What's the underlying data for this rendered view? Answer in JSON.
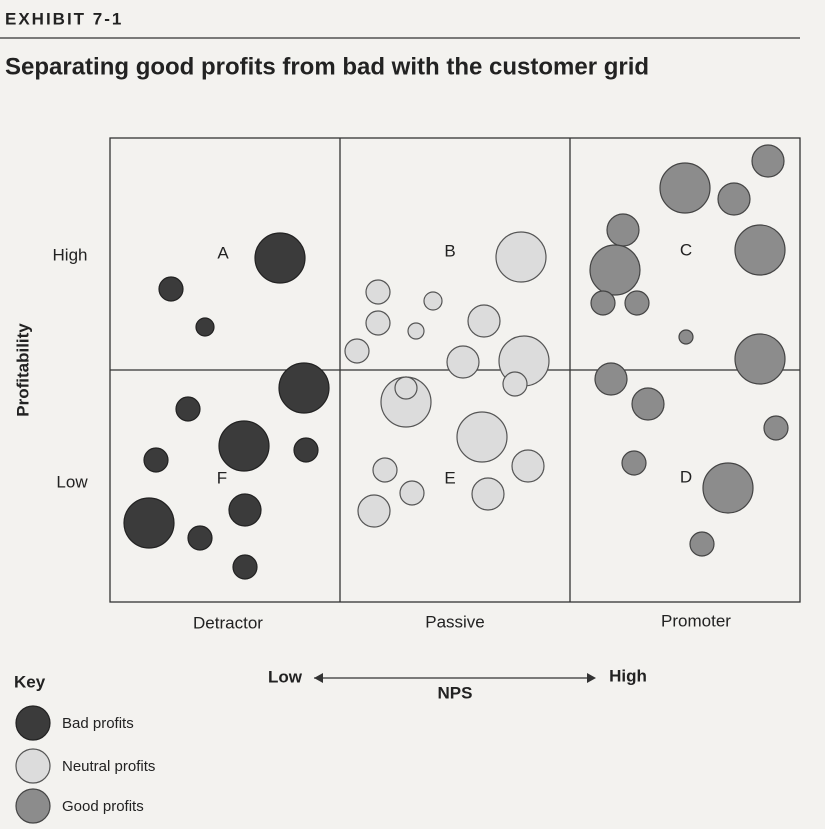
{
  "header": {
    "exhibit": "EXHIBIT 7-1",
    "title": "Separating good profits from bad with the customer grid"
  },
  "grid": {
    "y_axis_title": "Profitability",
    "y_levels": [
      "High",
      "Low"
    ],
    "x_levels": [
      "Detractor",
      "Passive",
      "Promoter"
    ],
    "quadrants": [
      "A",
      "B",
      "C",
      "D",
      "E",
      "F"
    ]
  },
  "axis": {
    "low": "Low",
    "title": "NPS",
    "high": "High"
  },
  "key": {
    "title": "Key",
    "items": [
      "Bad profits",
      "Neutral profits",
      "Good profits"
    ]
  }
}
